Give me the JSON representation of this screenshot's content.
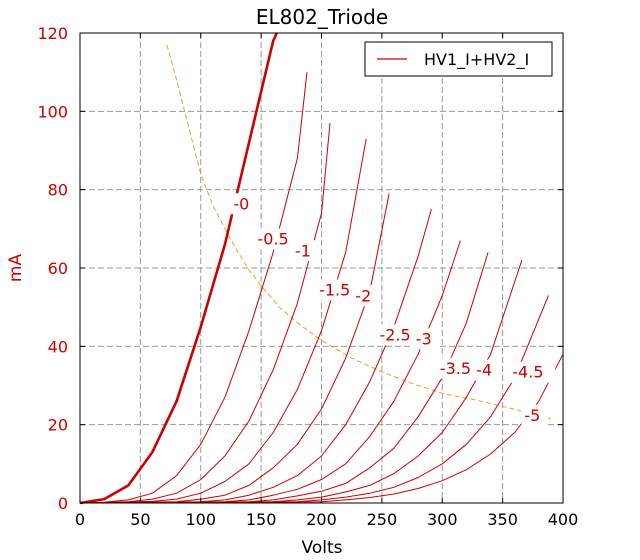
{
  "chart_data": {
    "type": "line",
    "title": "EL802_Triode",
    "xlabel": "Volts",
    "ylabel": "mA",
    "xlim": [
      0,
      400
    ],
    "ylim": [
      0,
      120
    ],
    "xticks": [
      0,
      50,
      100,
      150,
      200,
      250,
      300,
      350,
      400
    ],
    "yticks": [
      0,
      20,
      40,
      60,
      80,
      100,
      120
    ],
    "grid": true,
    "legend": {
      "position": "top-right",
      "entries": [
        "HV1_I+HV2_I"
      ]
    },
    "colors": {
      "curves": "#cc0000",
      "load_line": "#e8a020",
      "grid": "#999999"
    },
    "series": [
      {
        "grid_label": "-0",
        "x": [
          0,
          20,
          40,
          60,
          80,
          100,
          120,
          140,
          160,
          163
        ],
        "y": [
          0,
          1,
          4.5,
          13,
          26,
          45,
          66,
          92,
          118,
          120
        ]
      },
      {
        "grid_label": "-0.5",
        "x": [
          0,
          20,
          40,
          60,
          80,
          100,
          120,
          140,
          160,
          180,
          188
        ],
        "y": [
          0,
          0.2,
          0.8,
          2.5,
          7,
          15,
          27,
          44,
          64,
          88,
          110
        ]
      },
      {
        "grid_label": "-1",
        "x": [
          0,
          40,
          60,
          80,
          100,
          120,
          140,
          160,
          180,
          200,
          207
        ],
        "y": [
          0,
          0.3,
          1,
          2.5,
          6,
          12,
          21,
          34,
          51,
          74,
          97
        ]
      },
      {
        "grid_label": "-1.5",
        "x": [
          0,
          60,
          80,
          100,
          120,
          140,
          160,
          180,
          200,
          220,
          237
        ],
        "y": [
          0,
          0.4,
          1,
          2.5,
          5.5,
          10,
          18,
          29,
          44,
          64,
          93
        ]
      },
      {
        "grid_label": "-2",
        "x": [
          0,
          80,
          100,
          120,
          140,
          160,
          180,
          200,
          220,
          240,
          256
        ],
        "y": [
          0,
          0.3,
          1,
          2,
          4.5,
          9,
          15,
          24,
          37,
          54,
          79
        ]
      },
      {
        "grid_label": "-2.5",
        "x": [
          0,
          100,
          120,
          140,
          160,
          180,
          200,
          220,
          240,
          260,
          280,
          291
        ],
        "y": [
          0,
          0.3,
          0.8,
          2,
          4,
          7,
          12,
          20,
          31,
          45,
          63,
          75
        ]
      },
      {
        "grid_label": "-3",
        "x": [
          0,
          120,
          140,
          160,
          180,
          200,
          220,
          240,
          260,
          280,
          300,
          315
        ],
        "y": [
          0,
          0.3,
          0.8,
          2,
          3.5,
          6,
          10,
          17,
          26,
          38,
          53,
          67
        ]
      },
      {
        "grid_label": "-3.5",
        "x": [
          0,
          140,
          160,
          180,
          200,
          220,
          240,
          260,
          280,
          300,
          320,
          338
        ],
        "y": [
          0,
          0.3,
          0.8,
          1.8,
          3,
          5,
          9,
          14,
          22,
          32,
          46,
          64
        ]
      },
      {
        "grid_label": "-4",
        "x": [
          0,
          160,
          180,
          200,
          220,
          240,
          260,
          280,
          300,
          320,
          340,
          366
        ],
        "y": [
          0,
          0.3,
          0.8,
          1.5,
          2.8,
          4.5,
          7.5,
          12,
          18,
          27,
          38,
          62
        ]
      },
      {
        "grid_label": "-4.5",
        "x": [
          0,
          180,
          200,
          220,
          240,
          260,
          280,
          300,
          320,
          340,
          360,
          388
        ],
        "y": [
          0,
          0.3,
          0.8,
          1.5,
          2.5,
          4,
          6.5,
          10,
          15,
          22,
          32,
          53
        ]
      },
      {
        "grid_label": "-5",
        "x": [
          0,
          200,
          220,
          240,
          260,
          280,
          300,
          320,
          340,
          360,
          380,
          400
        ],
        "y": [
          0,
          0.3,
          0.8,
          1.4,
          2.3,
          3.7,
          5.7,
          8.5,
          12.5,
          18,
          26,
          38
        ]
      }
    ],
    "load_line": {
      "x": [
        72,
        80,
        90,
        100,
        110,
        120,
        130,
        140,
        150,
        165,
        180,
        200,
        225,
        250,
        275,
        300,
        325,
        350,
        375,
        390
      ],
      "y": [
        117,
        108,
        96,
        84,
        76,
        70,
        64.5,
        59.5,
        55.5,
        50,
        46,
        41.5,
        37,
        33.5,
        30.5,
        28,
        26.5,
        24.7,
        22.8,
        21.5
      ]
    },
    "curve_labels": [
      {
        "text": "-0",
        "x": 127,
        "y": 75
      },
      {
        "text": "-0.5",
        "x": 147,
        "y": 66
      },
      {
        "text": "-1",
        "x": 178,
        "y": 63
      },
      {
        "text": "-1.5",
        "x": 198,
        "y": 53
      },
      {
        "text": "-2",
        "x": 228,
        "y": 51.5
      },
      {
        "text": "-2.5",
        "x": 248,
        "y": 41.5
      },
      {
        "text": "-3",
        "x": 278,
        "y": 40.5
      },
      {
        "text": "-3.5",
        "x": 298,
        "y": 33
      },
      {
        "text": "-4",
        "x": 328,
        "y": 32.5
      },
      {
        "text": "-4.5",
        "x": 358,
        "y": 32
      },
      {
        "text": "-5",
        "x": 368,
        "y": 21
      }
    ]
  }
}
